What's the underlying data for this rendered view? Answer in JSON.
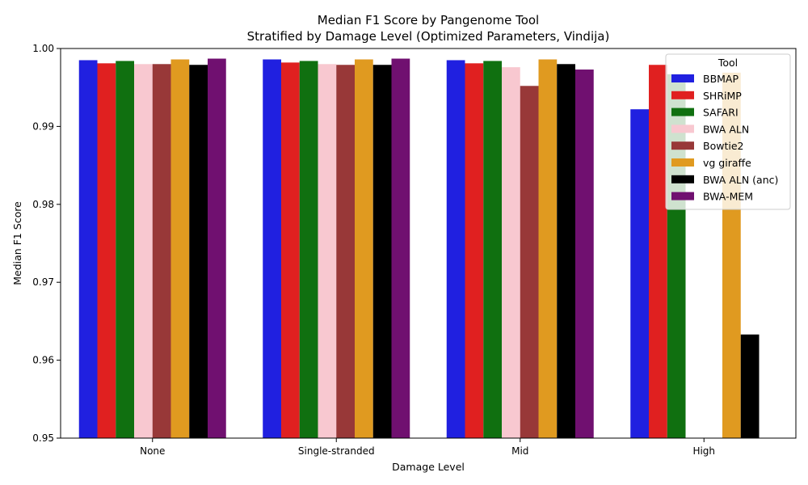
{
  "chart_data": {
    "type": "bar",
    "title": "Median F1 Score by Pangenome Tool",
    "subtitle": "Stratified by Damage Level (Optimized Parameters, Vindija)",
    "xlabel": "Damage Level",
    "ylabel": "Median F1 Score",
    "ylim": [
      0.95,
      1.0
    ],
    "yticks": [
      "0.95",
      "0.96",
      "0.97",
      "0.98",
      "0.99",
      "1.00"
    ],
    "categories": [
      "None",
      "Single-stranded",
      "Mid",
      "High"
    ],
    "legend": {
      "title": "Tool",
      "placement": "top-right"
    },
    "grid": false,
    "series": [
      {
        "name": "BBMAP",
        "color": "#2020e0",
        "values": [
          0.9985,
          0.9986,
          0.9985,
          0.9922
        ]
      },
      {
        "name": "SHRiMP",
        "color": "#e02020",
        "values": [
          0.9981,
          0.9982,
          0.9981,
          0.9979
        ]
      },
      {
        "name": "SAFARI",
        "color": "#107010",
        "values": [
          0.9984,
          0.9984,
          0.9984,
          0.9967
        ]
      },
      {
        "name": "BWA ALN",
        "color": "#f8c8d0",
        "values": [
          0.998,
          0.998,
          0.9976,
          null
        ]
      },
      {
        "name": "Bowtie2",
        "color": "#983838",
        "values": [
          0.998,
          0.9979,
          0.9952,
          null
        ]
      },
      {
        "name": "vg giraffe",
        "color": "#e09a20",
        "values": [
          0.9986,
          0.9986,
          0.9986,
          0.9969
        ]
      },
      {
        "name": "BWA ALN (anc)",
        "color": "#000000",
        "values": [
          0.9979,
          0.9979,
          0.998,
          0.9633
        ]
      },
      {
        "name": "BWA-MEM",
        "color": "#701070",
        "values": [
          0.9987,
          0.9987,
          0.9973,
          null
        ]
      }
    ]
  }
}
